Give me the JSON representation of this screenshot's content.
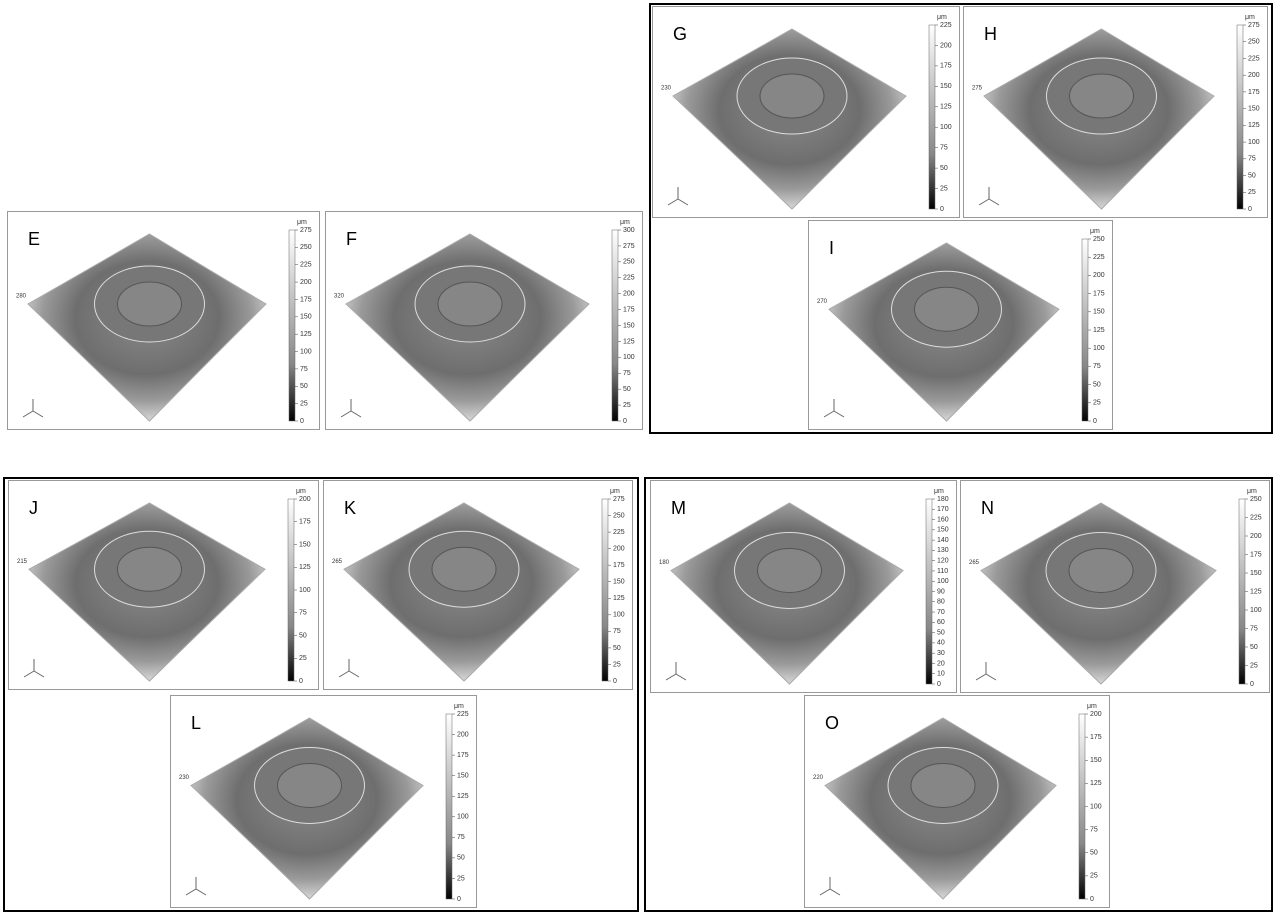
{
  "panels": [
    {
      "label": "E",
      "unit": "μm",
      "z_label": "280",
      "ticks": [
        0,
        25,
        50,
        75,
        100,
        125,
        150,
        175,
        200,
        225,
        250,
        275
      ]
    },
    {
      "label": "F",
      "unit": "μm",
      "z_label": "320",
      "ticks": [
        0,
        25,
        50,
        75,
        100,
        125,
        150,
        175,
        200,
        225,
        250,
        275,
        300
      ]
    },
    {
      "label": "G",
      "unit": "μm",
      "z_label": "230",
      "ticks": [
        0,
        25,
        50,
        75,
        100,
        125,
        150,
        175,
        200,
        225
      ]
    },
    {
      "label": "H",
      "unit": "μm",
      "z_label": "275",
      "ticks": [
        0,
        25,
        50,
        75,
        100,
        125,
        150,
        175,
        200,
        225,
        250,
        275
      ]
    },
    {
      "label": "I",
      "unit": "μm",
      "z_label": "270",
      "ticks": [
        0,
        25,
        50,
        75,
        100,
        125,
        150,
        175,
        200,
        225,
        250
      ]
    },
    {
      "label": "J",
      "unit": "μm",
      "z_label": "215",
      "ticks": [
        0,
        25,
        50,
        75,
        100,
        125,
        150,
        175,
        200
      ]
    },
    {
      "label": "K",
      "unit": "μm",
      "z_label": "265",
      "ticks": [
        0,
        25,
        50,
        75,
        100,
        125,
        150,
        175,
        200,
        225,
        250,
        275
      ]
    },
    {
      "label": "L",
      "unit": "μm",
      "z_label": "230",
      "ticks": [
        0,
        25,
        50,
        75,
        100,
        125,
        150,
        175,
        200,
        225
      ]
    },
    {
      "label": "M",
      "unit": "μm",
      "z_label": "180",
      "ticks": [
        0,
        10,
        20,
        30,
        40,
        50,
        60,
        70,
        80,
        90,
        100,
        110,
        120,
        130,
        140,
        150,
        160,
        170,
        180
      ]
    },
    {
      "label": "N",
      "unit": "μm",
      "z_label": "265",
      "ticks": [
        0,
        25,
        50,
        75,
        100,
        125,
        150,
        175,
        200,
        225,
        250
      ]
    },
    {
      "label": "O",
      "unit": "μm",
      "z_label": "220",
      "ticks": [
        0,
        25,
        50,
        75,
        100,
        125,
        150,
        175,
        200
      ]
    }
  ]
}
